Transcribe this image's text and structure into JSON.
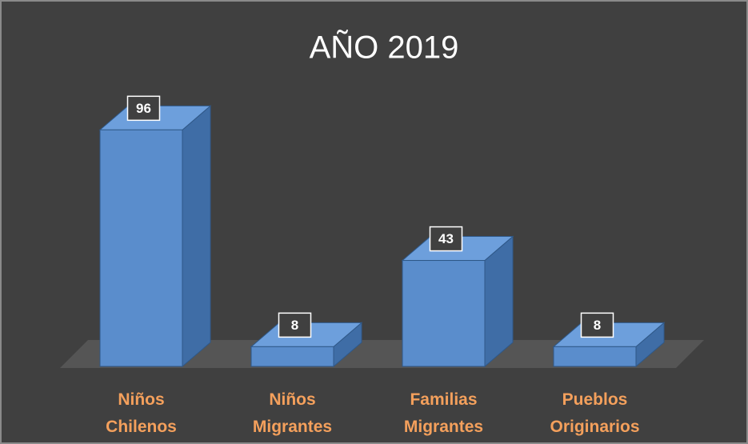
{
  "chart_data": {
    "type": "bar3d",
    "title": "AÑO 2019",
    "categories": [
      "Niños Chilenos",
      "Niños Migrantes",
      "Familias Migrantes",
      "Pueblos Originarios"
    ],
    "values": [
      96,
      8,
      43,
      8
    ],
    "color": "#5a8dcc"
  }
}
